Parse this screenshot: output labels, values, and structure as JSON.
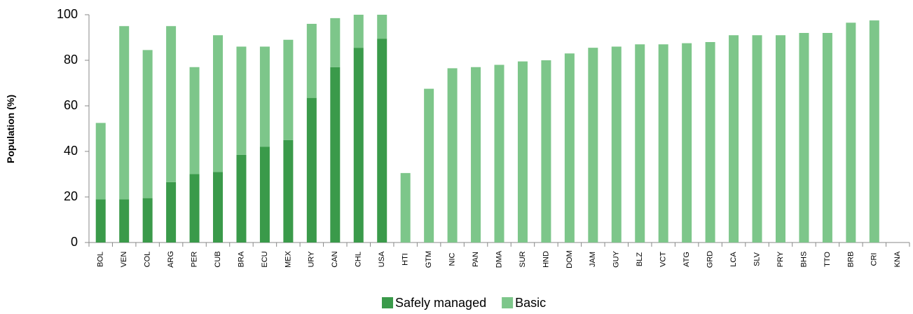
{
  "chart_data": {
    "type": "stacked_bar",
    "y_label": "Population (%)",
    "categories": [
      "BOL",
      "VEN",
      "COL",
      "ARG",
      "PER",
      "CUB",
      "BRA",
      "ECU",
      "MEX",
      "URY",
      "CAN",
      "CHL",
      "USA",
      "HTI",
      "GTM",
      "NIC",
      "PAN",
      "DMA",
      "SUR",
      "HND",
      "DOM",
      "JAM",
      "GUY",
      "BLZ",
      "VCT",
      "ATG",
      "GRD",
      "LCA",
      "SLV",
      "PRY",
      "BHS",
      "TTO",
      "BRB",
      "CRI",
      "KNA"
    ],
    "series": [
      {
        "name": "Safely managed",
        "color": "#3a9a4a",
        "values": [
          19,
          19,
          19.5,
          26.5,
          30,
          31,
          38.5,
          42,
          45,
          63.5,
          77,
          85.5,
          89.5,
          null,
          null,
          null,
          null,
          null,
          null,
          null,
          null,
          null,
          null,
          null,
          null,
          null,
          null,
          null,
          null,
          null,
          null,
          null,
          null,
          null,
          null
        ]
      },
      {
        "name": "Basic",
        "color": "#7dc68a",
        "values": [
          33.5,
          76,
          65,
          68.5,
          47,
          60,
          47.5,
          44,
          44,
          32.5,
          21.5,
          14.5,
          10.5,
          30.5,
          67.5,
          76.5,
          77,
          78,
          79.5,
          80,
          83,
          85.5,
          86,
          87,
          87,
          87.5,
          88,
          91,
          91,
          91,
          92,
          92,
          96.5,
          97.5,
          null
        ]
      }
    ],
    "ylim": [
      0,
      100
    ],
    "yticks": [
      0,
      20,
      40,
      60,
      80,
      100
    ],
    "grid": false
  }
}
